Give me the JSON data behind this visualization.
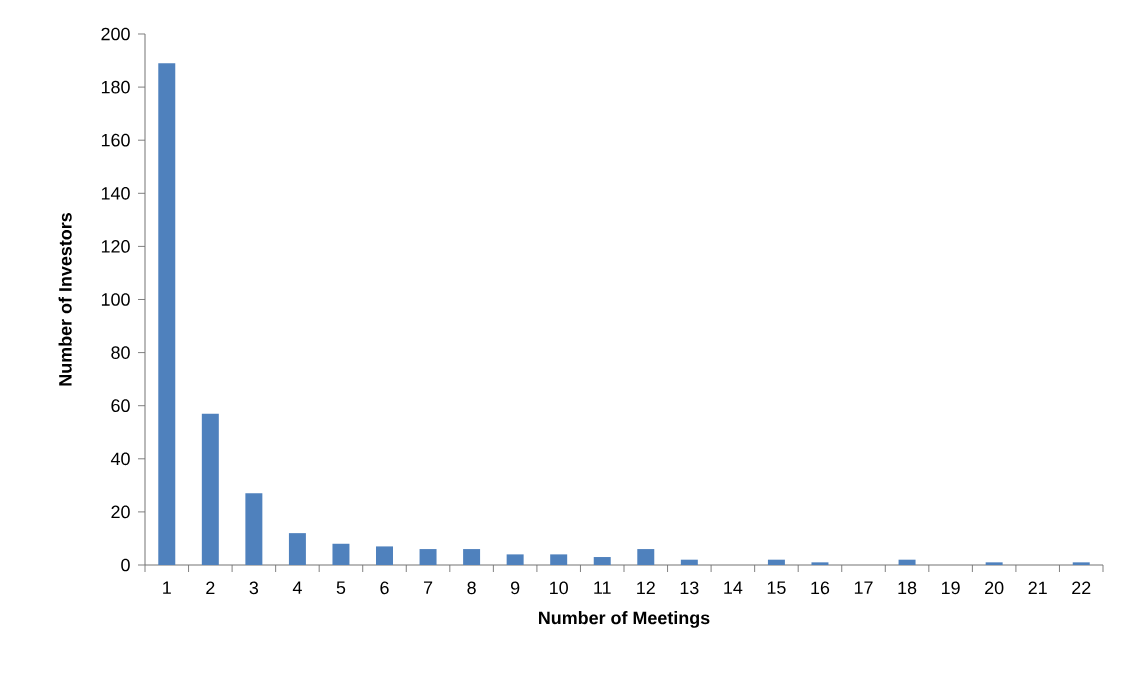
{
  "chart_data": {
    "type": "bar",
    "xlabel": "Number of Meetings",
    "ylabel": "Number of Investors",
    "categories": [
      "1",
      "2",
      "3",
      "4",
      "5",
      "6",
      "7",
      "8",
      "9",
      "10",
      "11",
      "12",
      "13",
      "14",
      "15",
      "16",
      "17",
      "18",
      "19",
      "20",
      "21",
      "22"
    ],
    "values": [
      189,
      57,
      27,
      12,
      8,
      7,
      6,
      6,
      4,
      4,
      3,
      6,
      2,
      0,
      2,
      1,
      0,
      2,
      0,
      1,
      0,
      1
    ],
    "color": "#4f81bd",
    "ylim": [
      0,
      200
    ],
    "yticks": [
      0,
      20,
      40,
      60,
      80,
      100,
      120,
      140,
      160,
      180,
      200
    ],
    "grid": false
  }
}
